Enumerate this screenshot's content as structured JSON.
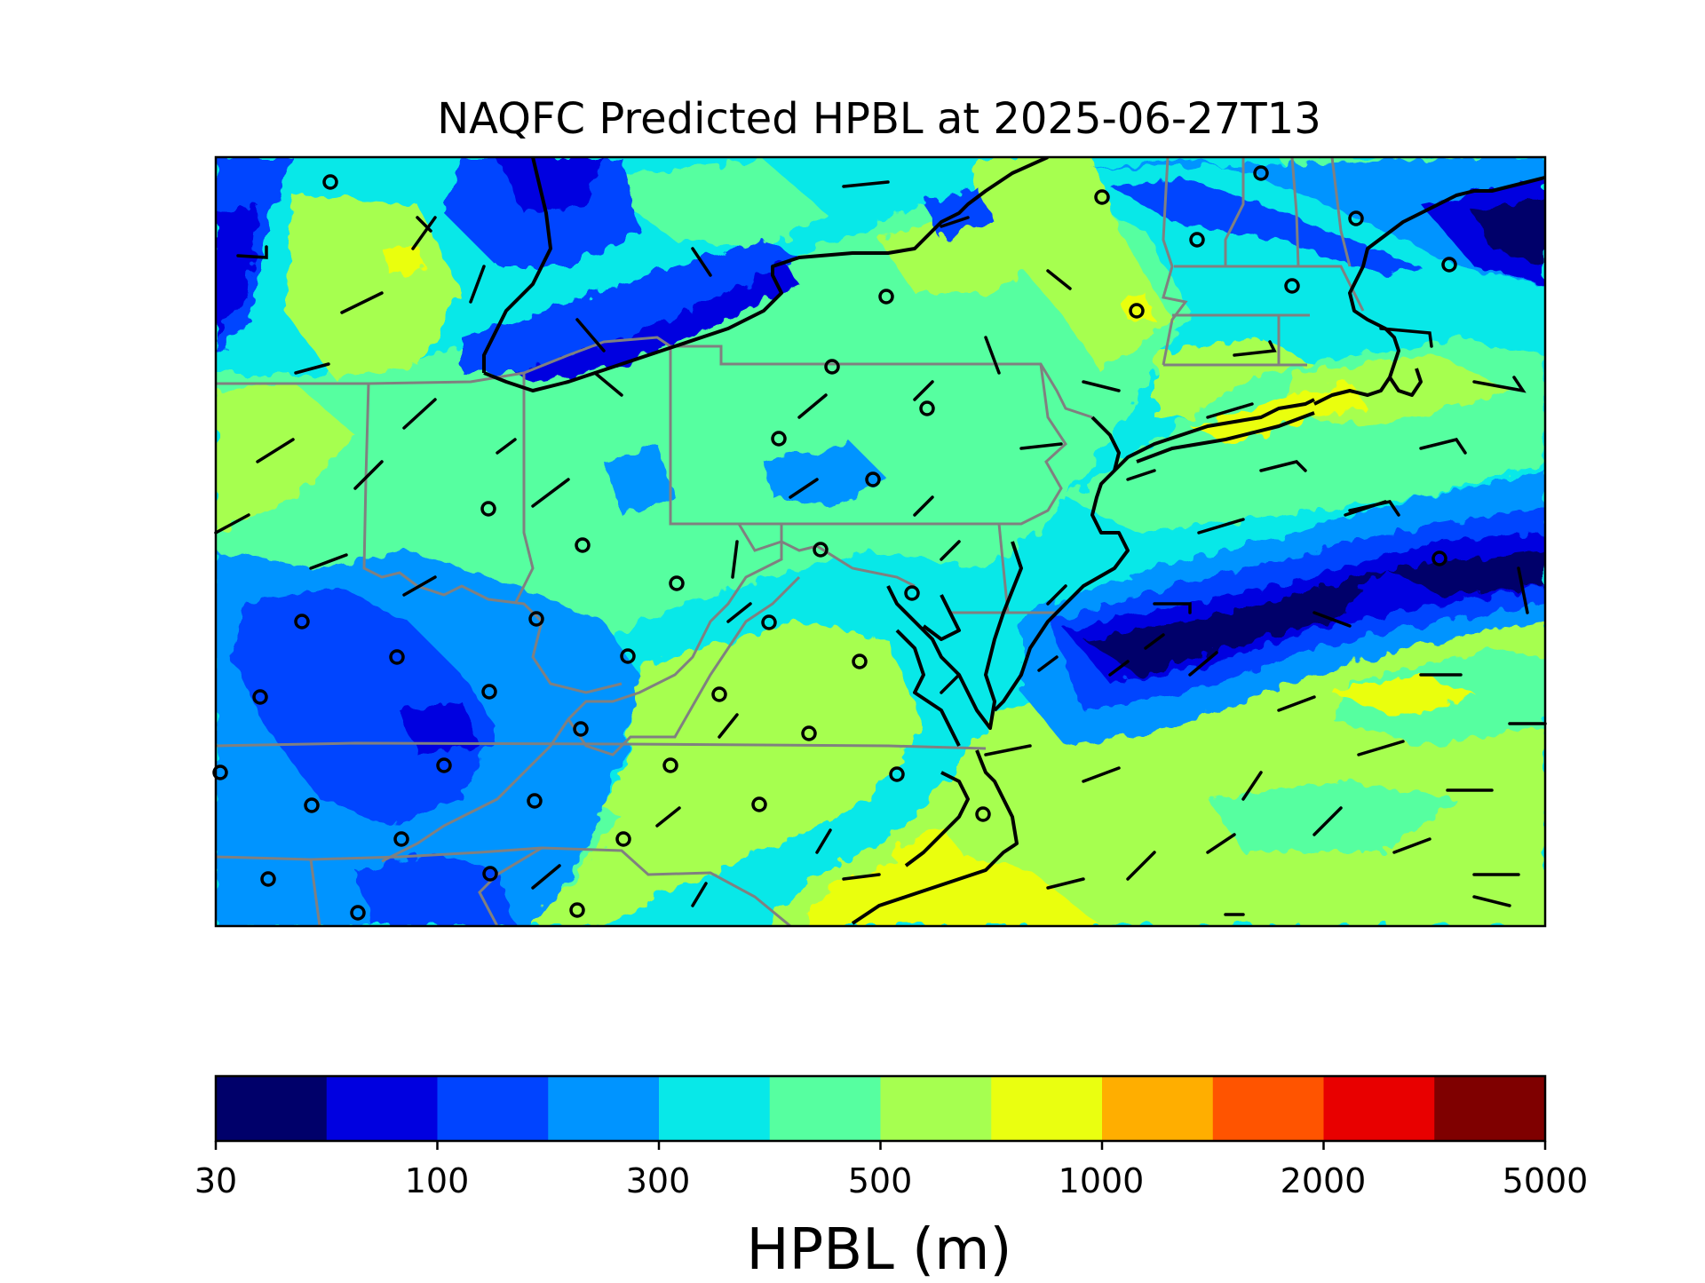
{
  "title": "NAQFC Predicted HPBL at 2025-06-27T13",
  "colorbar": {
    "label": "HPBL (m)",
    "ticks": [
      "30",
      "100",
      "300",
      "500",
      "1000",
      "2000",
      "5000"
    ],
    "colors": [
      "#00006a",
      "#0000e0",
      "#0044ff",
      "#0094ff",
      "#08e8e8",
      "#56ffa0",
      "#a6ff50",
      "#eaff10",
      "#ffae00",
      "#ff5400",
      "#e80000",
      "#7f0000"
    ]
  },
  "legend_items": {
    "point": "observation-site-circle",
    "barb": "wind-barb"
  },
  "colors": {
    "state_border": "#808080",
    "coastline": "#000000"
  }
}
